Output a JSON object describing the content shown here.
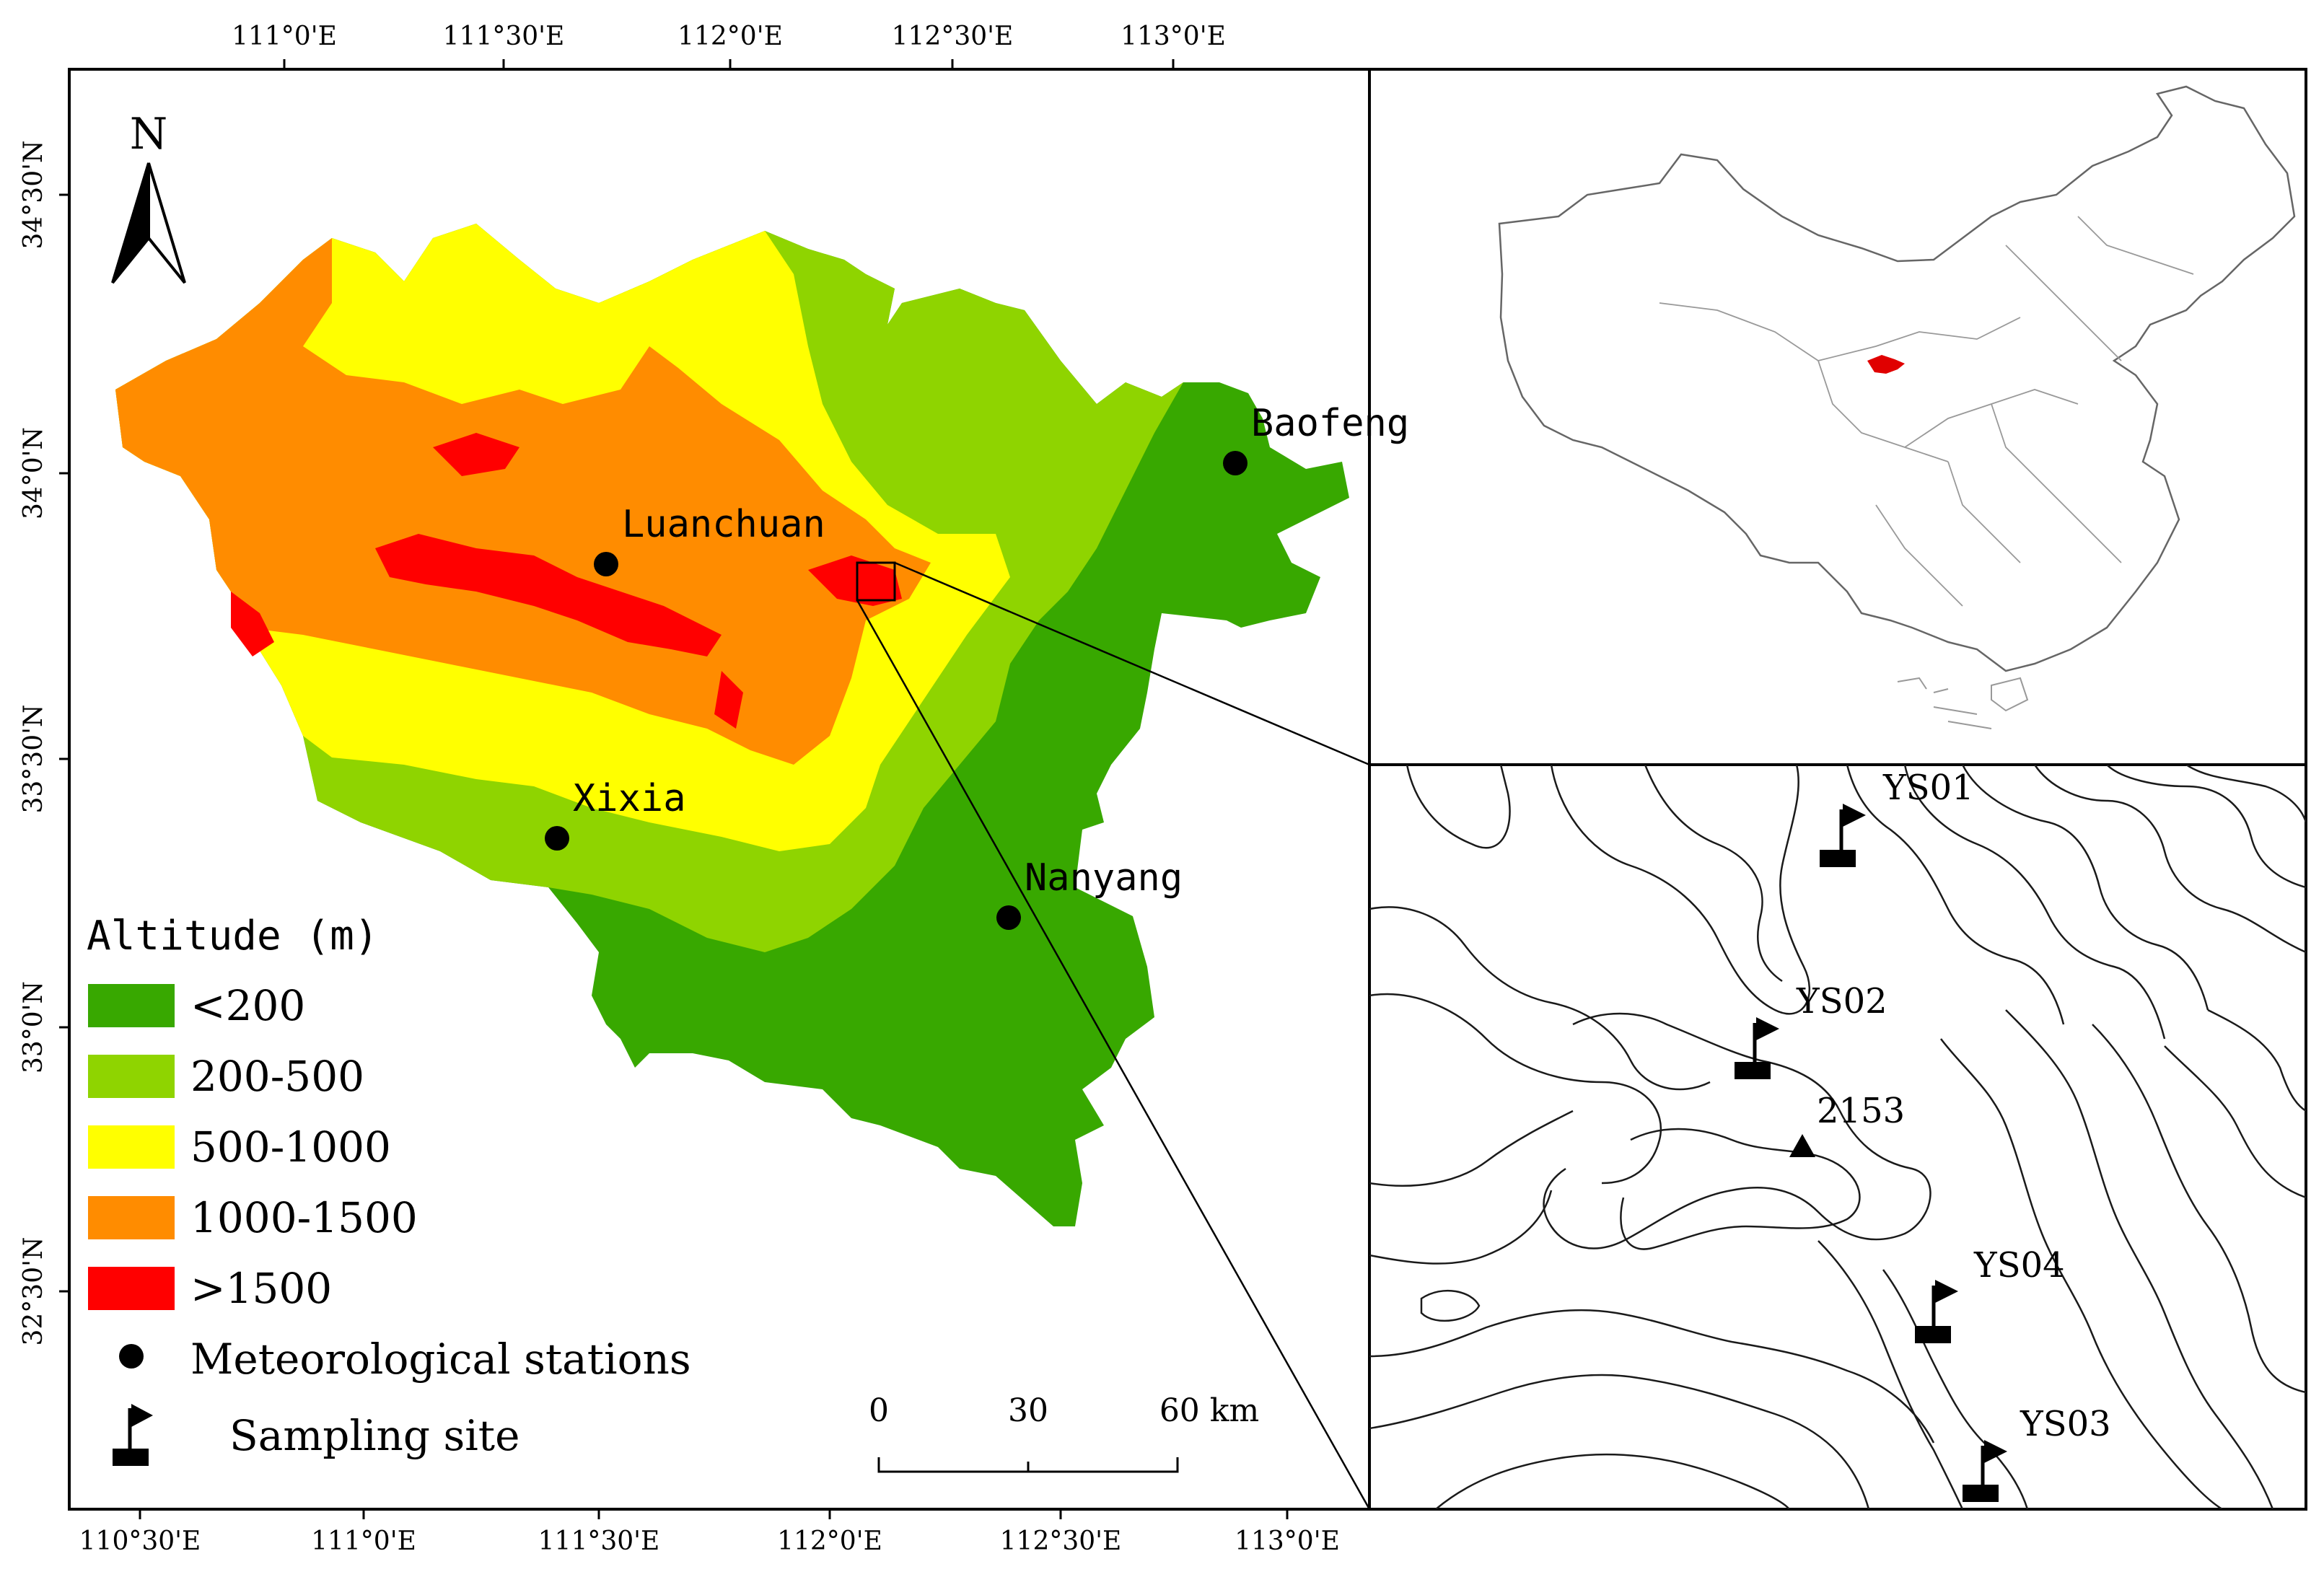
{
  "top_ticks": [
    "111°0'E",
    "111°30'E",
    "112°0'E",
    "112°30'E",
    "113°0'E"
  ],
  "bottom_ticks": [
    "110°30'E",
    "111°0'E",
    "111°30'E",
    "112°0'E",
    "112°30'E",
    "113°0'E"
  ],
  "left_ticks": [
    "34°30'N",
    "34°0'N",
    "33°30'N",
    "33°0'N",
    "32°30'N"
  ],
  "north_label": "N",
  "stations": [
    {
      "name": "Baofeng"
    },
    {
      "name": "Luanchuan"
    },
    {
      "name": "Xixia"
    },
    {
      "name": "Nanyang"
    }
  ],
  "legend": {
    "title": "Altitude (m)",
    "classes": [
      {
        "label": "<200",
        "color": "#38a800"
      },
      {
        "label": "200-500",
        "color": "#8fd400"
      },
      {
        "label": "500-1000",
        "color": "#ffff00"
      },
      {
        "label": "1000-1500",
        "color": "#ff8c00"
      },
      {
        "label": ">1500",
        "color": "#ff0000"
      }
    ],
    "stations_label": "Meteorological stations",
    "sampling_label": "Sampling site"
  },
  "scalebar": {
    "labels": [
      "0",
      "30",
      "60 km"
    ]
  },
  "detail": {
    "peak_label": "2153",
    "sites": [
      {
        "label": "YS01"
      },
      {
        "label": "YS02"
      },
      {
        "label": "YS04"
      },
      {
        "label": "YS03"
      }
    ]
  },
  "inset": {
    "highlight_color": "#e00000"
  }
}
